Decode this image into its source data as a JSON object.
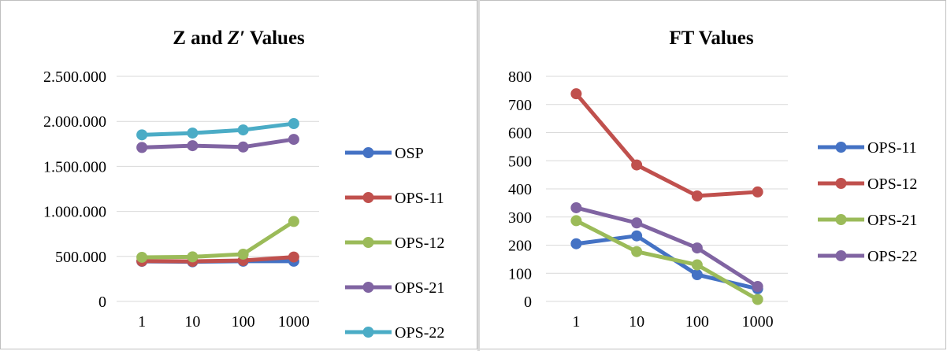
{
  "chart_data": [
    {
      "type": "line",
      "title_parts": [
        "Z and ",
        "Z′",
        " Values"
      ],
      "xlabel": "",
      "ylabel": "",
      "categories": [
        "1",
        "10",
        "100",
        "1000"
      ],
      "ylim": [
        0,
        2500000
      ],
      "yticks": [
        0,
        500000,
        1000000,
        1500000,
        2000000,
        2500000
      ],
      "ytick_labels": [
        "0",
        "500.000",
        "1.000.000",
        "1.500.000",
        "2.000.000",
        "2.500.000"
      ],
      "grid": true,
      "legend_position": "right",
      "series": [
        {
          "name": "OSP",
          "color": "#4472c4",
          "values": [
            445000,
            440000,
            447000,
            447000
          ]
        },
        {
          "name": "OPS-11",
          "color": "#c0504d",
          "values": [
            448000,
            445000,
            455000,
            493000
          ]
        },
        {
          "name": "OPS-12",
          "color": "#9bbb59",
          "values": [
            490000,
            495000,
            525000,
            888000
          ]
        },
        {
          "name": "OPS-21",
          "color": "#8064a2",
          "values": [
            1710000,
            1730000,
            1715000,
            1800000
          ]
        },
        {
          "name": "OPS-22",
          "color": "#4bacc6",
          "values": [
            1850000,
            1870000,
            1905000,
            1975000
          ]
        }
      ]
    },
    {
      "type": "line",
      "title": "FT Values",
      "xlabel": "",
      "ylabel": "",
      "categories": [
        "1",
        "10",
        "100",
        "1000"
      ],
      "ylim": [
        0,
        800
      ],
      "yticks": [
        0,
        100,
        200,
        300,
        400,
        500,
        600,
        700,
        800
      ],
      "ytick_labels": [
        "0",
        "100",
        "200",
        "300",
        "400",
        "500",
        "600",
        "700",
        "800"
      ],
      "grid": true,
      "legend_position": "right",
      "series": [
        {
          "name": "OPS-11",
          "color": "#4472c4",
          "values": [
            205,
            233,
            95,
            45
          ]
        },
        {
          "name": "OPS-12",
          "color": "#c0504d",
          "values": [
            738,
            485,
            375,
            389
          ]
        },
        {
          "name": "OPS-21",
          "color": "#9bbb59",
          "values": [
            287,
            177,
            130,
            7
          ]
        },
        {
          "name": "OPS-22",
          "color": "#8064a2",
          "values": [
            333,
            279,
            190,
            53
          ]
        }
      ]
    }
  ]
}
